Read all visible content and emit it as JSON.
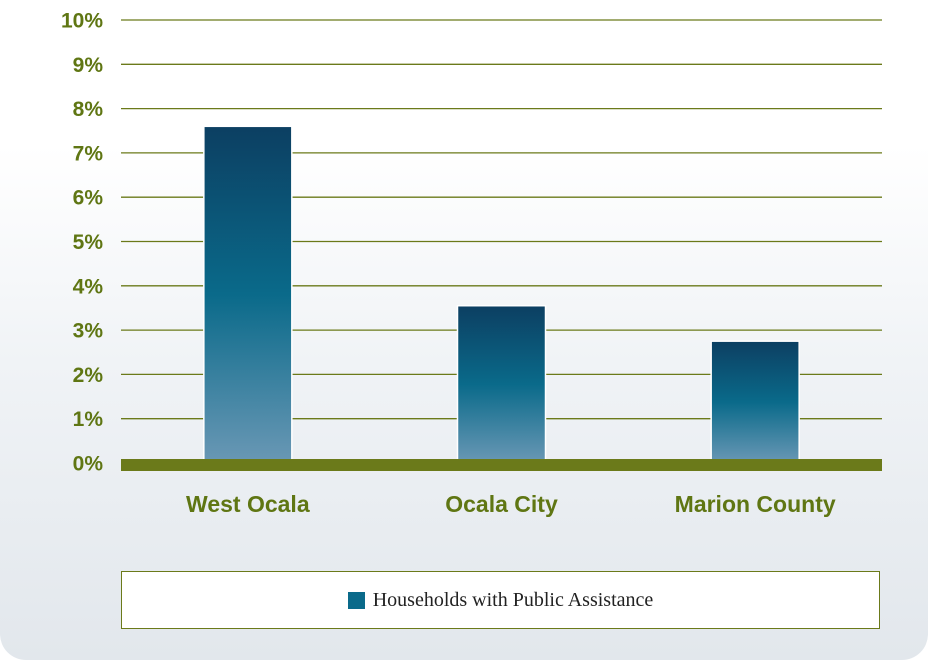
{
  "chart_data": {
    "type": "bar",
    "categories": [
      "West Ocala",
      "Ocala City",
      "Marion County"
    ],
    "series": [
      {
        "name": "Households with Public Assistance",
        "values": [
          7.6,
          3.55,
          2.75
        ]
      }
    ],
    "y_ticks": [
      "0%",
      "1%",
      "2%",
      "3%",
      "4%",
      "5%",
      "6%",
      "7%",
      "8%",
      "9%",
      "10%"
    ],
    "ylim": [
      0,
      10
    ],
    "grid": true,
    "legend_position": "bottom"
  },
  "colors": {
    "label_green": "#5f7613",
    "grid_green": "#6b7a1a",
    "axis_green": "#6b7a1a",
    "bar_top": "#0c3f62",
    "bar_mid": "#0a6a8a",
    "bar_bottom": "#6a98b5"
  },
  "legend": {
    "label": "Households with Public Assistance"
  }
}
